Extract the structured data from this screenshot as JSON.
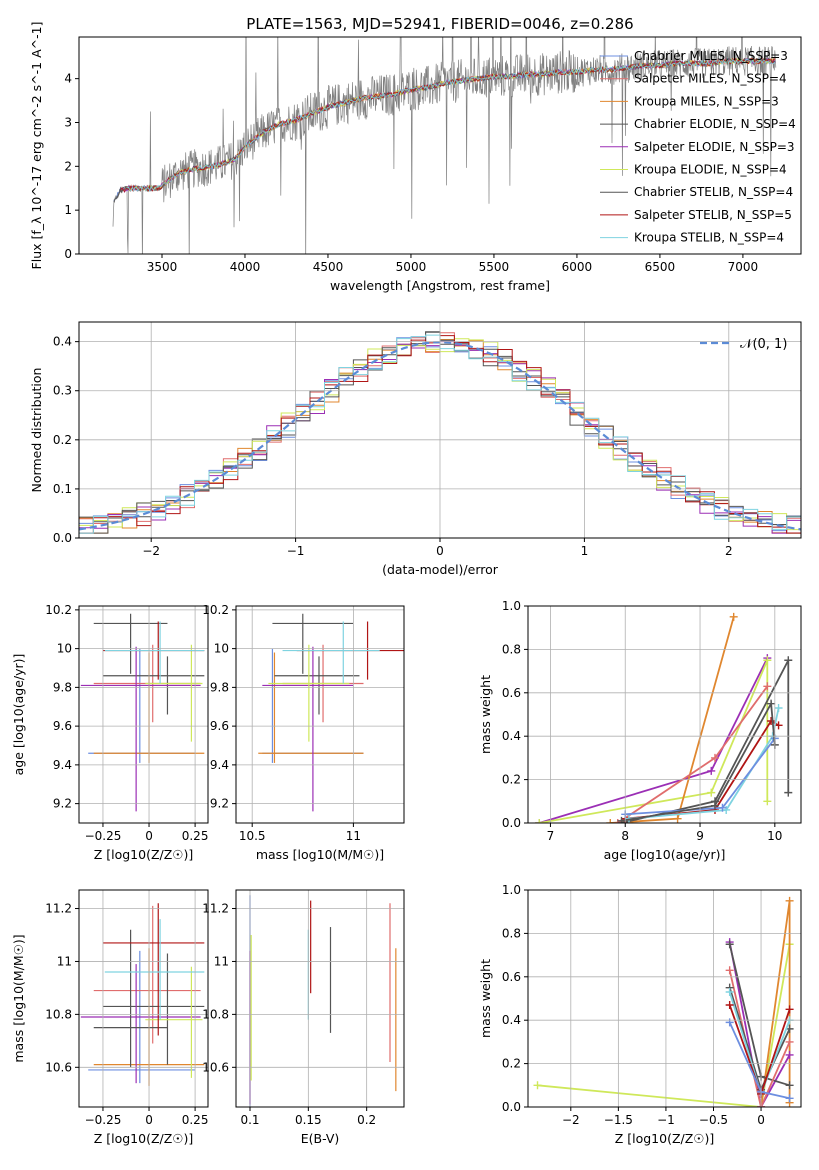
{
  "figure_title": "PLATE=1563, MJD=52941, FIBERID=0046, z=0.286",
  "colors": {
    "miles_chabrier": "#6d8fe0",
    "miles_salpeter": "#e06d6d",
    "miles_kroupa": "#e0872f",
    "elodie_chabrier": "#555555",
    "elodie_salpeter": "#9b2fb5",
    "elodie_kroupa": "#cfe85a",
    "stelib_chabrier": "#555555",
    "stelib_salpeter": "#b01515",
    "stelib_kroupa": "#7fd3e0",
    "data": "#808080",
    "normal": "#5b8bd6"
  },
  "chart_data": [
    {
      "id": "spectrum",
      "type": "line",
      "xlabel": "wavelength [Angstrom, rest frame]",
      "ylabel": "Flux [f_λ 10^-17 erg cm^-2 s^-1 A^-1]",
      "xlim": [
        3000,
        7350
      ],
      "ylim": [
        0,
        4.95
      ],
      "xticks": [
        3500,
        4000,
        4500,
        5000,
        5500,
        6000,
        6500,
        7000
      ],
      "yticks": [
        0,
        1,
        2,
        3,
        4
      ],
      "legend_position": "right",
      "legend": [
        {
          "label": "Chabrier MILES, N_SSP=3",
          "color_key": "miles_chabrier"
        },
        {
          "label": "Salpeter MILES, N_SSP=4",
          "color_key": "miles_salpeter"
        },
        {
          "label": "Kroupa MILES, N_SSP=3",
          "color_key": "miles_kroupa"
        },
        {
          "label": "Chabrier ELODIE, N_SSP=4",
          "color_key": "elodie_chabrier"
        },
        {
          "label": "Salpeter ELODIE, N_SSP=3",
          "color_key": "elodie_salpeter"
        },
        {
          "label": "Kroupa ELODIE, N_SSP=4",
          "color_key": "elodie_kroupa"
        },
        {
          "label": "Chabrier STELIB, N_SSP=4",
          "color_key": "stelib_chabrier"
        },
        {
          "label": "Salpeter STELIB, N_SSP=5",
          "color_key": "stelib_salpeter"
        },
        {
          "label": "Kroupa STELIB, N_SSP=4",
          "color_key": "stelib_kroupa"
        }
      ],
      "continuum": {
        "x": [
          3200,
          3210,
          3250,
          3300,
          3400,
          3480,
          3600,
          3700,
          3800,
          3850,
          3900,
          3950,
          4000,
          4100,
          4200,
          4300,
          4400,
          4500,
          4600,
          4700,
          4800,
          4900,
          5000,
          5100,
          5200,
          5300,
          5400,
          5500,
          5600,
          5700,
          5800,
          5900,
          6000,
          6100,
          6200,
          6300,
          6400,
          6500,
          6600,
          6700,
          6800,
          6900,
          7000,
          7100,
          7200
        ],
        "y": [
          0.0,
          1.2,
          1.45,
          1.5,
          1.5,
          1.5,
          1.85,
          1.95,
          2.0,
          2.05,
          2.1,
          2.2,
          2.45,
          2.75,
          2.95,
          3.05,
          3.2,
          3.35,
          3.45,
          3.55,
          3.6,
          3.65,
          3.75,
          3.8,
          3.9,
          3.95,
          4.0,
          4.05,
          4.05,
          4.1,
          4.1,
          4.15,
          4.15,
          4.2,
          4.2,
          4.25,
          4.3,
          4.3,
          4.35,
          4.35,
          4.35,
          4.4,
          4.4,
          4.4,
          4.4
        ]
      }
    },
    {
      "id": "residuals",
      "type": "line",
      "xlabel": "(data-model)/error",
      "ylabel": "Normed distribution",
      "xlim": [
        -2.5,
        2.5
      ],
      "ylim": [
        0,
        0.44
      ],
      "xticks": [
        -2,
        -1,
        0,
        1,
        2
      ],
      "yticks": [
        0.0,
        0.1,
        0.2,
        0.3,
        0.4
      ],
      "grid": true,
      "legend_position": "top-right",
      "legend": [
        {
          "label": "𝒩(0, 1)",
          "color_key": "normal"
        }
      ],
      "bins": {
        "start": -2.5,
        "width": 0.1,
        "count": 50
      }
    },
    {
      "id": "age_vs_Z",
      "type": "scatter",
      "xlabel": "Z [log10(Z/Z☉)]",
      "ylabel": "age  [log10(age/yr)]",
      "xlim": [
        -0.38,
        0.32
      ],
      "ylim": [
        9.1,
        10.22
      ],
      "xticks": [
        -0.25,
        0.0,
        0.25
      ],
      "yticks": [
        9.2,
        9.4,
        9.6,
        9.8,
        10.0,
        10.2
      ],
      "grid": true,
      "points": [
        {
          "c": "miles_chabrier",
          "x": -0.05,
          "xerr": [
            0.28,
            0.3
          ],
          "y": 9.46,
          "yerr": [
            0.05,
            0.54
          ]
        },
        {
          "c": "miles_salpeter",
          "x": 0.02,
          "xerr": [
            0.32,
            0.26
          ],
          "y": 9.82,
          "yerr": [
            0.2,
            0.2
          ]
        },
        {
          "c": "miles_kroupa",
          "x": 0.0,
          "xerr": [
            0.3,
            0.3
          ],
          "y": 9.46,
          "yerr": [
            0.05,
            0.52
          ]
        },
        {
          "c": "elodie_chabrier",
          "x": 0.1,
          "xerr": [
            0.35,
            0.2
          ],
          "y": 9.86,
          "yerr": [
            0.2,
            0.1
          ]
        },
        {
          "c": "elodie_salpeter",
          "x": -0.07,
          "xerr": [
            0.3,
            0.35
          ],
          "y": 9.81,
          "yerr": [
            0.65,
            0.2
          ]
        },
        {
          "c": "elodie_kroupa",
          "x": 0.23,
          "xerr": [
            0.25,
            0.06
          ],
          "y": 9.82,
          "yerr": [
            0.3,
            0.2
          ]
        },
        {
          "c": "stelib_chabrier",
          "x": -0.1,
          "xerr": [
            0.2,
            0.2
          ],
          "y": 10.13,
          "yerr": [
            0.26,
            0.05
          ]
        },
        {
          "c": "stelib_salpeter",
          "x": 0.05,
          "xerr": [
            0.3,
            0.25
          ],
          "y": 9.99,
          "yerr": [
            0.15,
            0.15
          ]
        },
        {
          "c": "stelib_kroupa",
          "x": 0.06,
          "xerr": [
            0.3,
            0.24
          ],
          "y": 9.99,
          "yerr": [
            0.17,
            0.15
          ]
        }
      ]
    },
    {
      "id": "age_vs_mass",
      "type": "scatter",
      "xlabel": "mass [log10(M/M☉)]",
      "ylabel": "",
      "xlim": [
        10.42,
        11.25
      ],
      "ylim": [
        9.1,
        10.22
      ],
      "xticks": [
        10.5,
        11.0
      ],
      "yticks": [
        9.2,
        9.4,
        9.6,
        9.8,
        10.0,
        10.2
      ],
      "grid": true,
      "points": [
        {
          "c": "miles_chabrier",
          "x": 10.6,
          "xerr": [
            0.05,
            0.45
          ],
          "y": 9.46,
          "yerr": [
            0.05,
            0.54
          ]
        },
        {
          "c": "miles_salpeter",
          "x": 10.85,
          "xerr": [
            0.2,
            0.2
          ],
          "y": 9.82,
          "yerr": [
            0.2,
            0.2
          ]
        },
        {
          "c": "miles_kroupa",
          "x": 10.61,
          "xerr": [
            0.08,
            0.44
          ],
          "y": 9.46,
          "yerr": [
            0.05,
            0.52
          ]
        },
        {
          "c": "elodie_chabrier",
          "x": 10.83,
          "xerr": [
            0.22,
            0.2
          ],
          "y": 9.86,
          "yerr": [
            0.2,
            0.1
          ]
        },
        {
          "c": "elodie_salpeter",
          "x": 10.8,
          "xerr": [
            0.25,
            0.2
          ],
          "y": 9.81,
          "yerr": [
            0.65,
            0.2
          ]
        },
        {
          "c": "elodie_kroupa",
          "x": 10.78,
          "xerr": [
            0.2,
            0.2
          ],
          "y": 9.82,
          "yerr": [
            0.3,
            0.2
          ]
        },
        {
          "c": "stelib_chabrier",
          "x": 10.75,
          "xerr": [
            0.15,
            0.25
          ],
          "y": 10.13,
          "yerr": [
            0.26,
            0.05
          ]
        },
        {
          "c": "stelib_salpeter",
          "x": 11.07,
          "xerr": [
            0.35,
            0.2
          ],
          "y": 9.99,
          "yerr": [
            0.15,
            0.15
          ]
        },
        {
          "c": "stelib_kroupa",
          "x": 10.95,
          "xerr": [
            0.3,
            0.18
          ],
          "y": 9.99,
          "yerr": [
            0.17,
            0.15
          ]
        }
      ]
    },
    {
      "id": "mw_vs_age",
      "type": "line",
      "xlabel": "age  [log10(age/yr)]",
      "ylabel": "mass weight",
      "xlim": [
        6.7,
        10.35
      ],
      "ylim": [
        0,
        1.0
      ],
      "xticks": [
        7,
        8,
        9,
        10
      ],
      "yticks": [
        0.0,
        0.2,
        0.4,
        0.6,
        0.8,
        1.0
      ],
      "grid": true,
      "series": [
        {
          "c": "elodie_salpeter",
          "x": [
            6.85,
            9.15,
            9.9
          ],
          "y": [
            0.0,
            0.24,
            0.76
          ]
        },
        {
          "c": "elodie_kroupa",
          "x": [
            6.85,
            9.15,
            9.9,
            9.9
          ],
          "y": [
            0.0,
            0.14,
            0.75,
            0.1
          ]
        },
        {
          "c": "miles_kroupa",
          "x": [
            7.8,
            8.7,
            9.45
          ],
          "y": [
            0.0,
            0.02,
            0.95
          ]
        },
        {
          "c": "miles_salpeter",
          "x": [
            7.9,
            9.2,
            9.9
          ],
          "y": [
            0.0,
            0.3,
            0.63
          ]
        },
        {
          "c": "elodie_chabrier",
          "x": [
            7.95,
            9.2,
            10.18,
            10.18
          ],
          "y": [
            0.0,
            0.1,
            0.75,
            0.14
          ]
        },
        {
          "c": "stelib_salpeter",
          "x": [
            8.0,
            9.2,
            9.95,
            10.05
          ],
          "y": [
            0.02,
            0.06,
            0.47,
            0.45
          ]
        },
        {
          "c": "stelib_kroupa",
          "x": [
            8.05,
            9.35,
            9.97,
            10.05
          ],
          "y": [
            0.02,
            0.06,
            0.4,
            0.53
          ]
        },
        {
          "c": "miles_chabrier",
          "x": [
            8.0,
            9.3,
            10.0
          ],
          "y": [
            0.04,
            0.07,
            0.39
          ]
        },
        {
          "c": "stelib_chabrier",
          "x": [
            7.95,
            9.2,
            9.95,
            10.0
          ],
          "y": [
            0.01,
            0.08,
            0.55,
            0.36
          ]
        }
      ]
    },
    {
      "id": "mass_vs_Z",
      "type": "scatter",
      "xlabel": "Z [log10(Z/Z☉)]",
      "ylabel": "mass [log10(M/M☉)]",
      "xlim": [
        -0.38,
        0.32
      ],
      "ylim": [
        10.45,
        11.27
      ],
      "xticks": [
        -0.25,
        0.0,
        0.25
      ],
      "yticks": [
        10.6,
        10.8,
        11.0,
        11.2
      ],
      "grid": true,
      "points": [
        {
          "c": "miles_chabrier",
          "x": -0.05,
          "xerr": [
            0.28,
            0.3
          ],
          "y": 10.59,
          "yerr": [
            0.05,
            0.45
          ]
        },
        {
          "c": "miles_salpeter",
          "x": 0.02,
          "xerr": [
            0.32,
            0.26
          ],
          "y": 10.89,
          "yerr": [
            0.2,
            0.32
          ]
        },
        {
          "c": "miles_kroupa",
          "x": 0.0,
          "xerr": [
            0.3,
            0.3
          ],
          "y": 10.61,
          "yerr": [
            0.08,
            0.44
          ]
        },
        {
          "c": "elodie_chabrier",
          "x": 0.1,
          "xerr": [
            0.35,
            0.2
          ],
          "y": 10.83,
          "yerr": [
            0.22,
            0.2
          ]
        },
        {
          "c": "elodie_salpeter",
          "x": -0.07,
          "xerr": [
            0.3,
            0.35
          ],
          "y": 10.79,
          "yerr": [
            0.25,
            0.2
          ]
        },
        {
          "c": "elodie_kroupa",
          "x": 0.23,
          "xerr": [
            0.25,
            0.06
          ],
          "y": 10.78,
          "yerr": [
            0.22,
            0.2
          ]
        },
        {
          "c": "stelib_chabrier",
          "x": -0.1,
          "xerr": [
            0.2,
            0.2
          ],
          "y": 10.75,
          "yerr": [
            0.15,
            0.37
          ]
        },
        {
          "c": "stelib_salpeter",
          "x": 0.05,
          "xerr": [
            0.3,
            0.25
          ],
          "y": 11.07,
          "yerr": [
            0.35,
            0.15
          ]
        },
        {
          "c": "stelib_kroupa",
          "x": 0.06,
          "xerr": [
            0.3,
            0.24
          ],
          "y": 10.96,
          "yerr": [
            0.18,
            0.2
          ]
        }
      ]
    },
    {
      "id": "mass_vs_EBV",
      "type": "scatter",
      "xlabel": "E(B-V)",
      "ylabel": "",
      "xlim": [
        0.088,
        0.232
      ],
      "ylim": [
        10.45,
        11.27
      ],
      "xticks": [
        0.1,
        0.15,
        0.2
      ],
      "yticks": [
        10.6,
        10.8,
        11.0,
        11.2
      ],
      "grid": true,
      "points": [
        {
          "c": "miles_chabrier",
          "x": 0.1,
          "yerr": [
            0.5,
            0.5
          ],
          "y": 10.75
        },
        {
          "c": "elodie_salpeter",
          "x": 0.1,
          "y": 10.74,
          "yerr": [
            0.28,
            0.3
          ]
        },
        {
          "c": "elodie_kroupa",
          "x": 0.101,
          "y": 10.8,
          "yerr": [
            0.25,
            0.3
          ]
        },
        {
          "c": "stelib_kroupa",
          "x": 0.15,
          "y": 10.95,
          "yerr": [
            0.17,
            0.17
          ]
        },
        {
          "c": "stelib_salpeter",
          "x": 0.152,
          "y": 11.08,
          "yerr": [
            0.2,
            0.15
          ]
        },
        {
          "c": "elodie_chabrier",
          "x": 0.169,
          "y": 10.93,
          "yerr": [
            0.2,
            0.2
          ]
        },
        {
          "c": "miles_salpeter",
          "x": 0.22,
          "y": 10.92,
          "yerr": [
            0.3,
            0.3
          ]
        },
        {
          "c": "miles_kroupa",
          "x": 0.225,
          "y": 10.78,
          "yerr": [
            0.27,
            0.27
          ]
        }
      ]
    },
    {
      "id": "mw_vs_Z",
      "type": "line",
      "xlabel": "Z [log10(Z/Z☉)]",
      "ylabel": "mass weight",
      "xlim": [
        -2.45,
        0.42
      ],
      "ylim": [
        0,
        1.0
      ],
      "xticks": [
        -2.0,
        -1.5,
        -1.0,
        -0.5,
        0.0
      ],
      "yticks": [
        0.0,
        0.2,
        0.4,
        0.6,
        0.8,
        1.0
      ],
      "grid": true,
      "series": [
        {
          "c": "elodie_kroupa",
          "x": [
            -2.35,
            0.0,
            0.3
          ],
          "y": [
            0.1,
            0.0,
            0.75
          ]
        },
        {
          "c": "miles_kroupa",
          "x": [
            0.0,
            0.3,
            0.3
          ],
          "y": [
            0.0,
            0.95,
            0.02
          ]
        },
        {
          "c": "elodie_salpeter",
          "x": [
            -0.33,
            0.0,
            0.3
          ],
          "y": [
            0.76,
            0.0,
            0.24
          ]
        },
        {
          "c": "elodie_chabrier",
          "x": [
            -0.33,
            0.0,
            0.3
          ],
          "y": [
            0.75,
            0.14,
            0.1
          ]
        },
        {
          "c": "miles_salpeter",
          "x": [
            -0.33,
            0.0,
            0.3
          ],
          "y": [
            0.63,
            0.0,
            0.3
          ]
        },
        {
          "c": "stelib_chabrier",
          "x": [
            -0.33,
            0.0,
            0.3
          ],
          "y": [
            0.55,
            0.08,
            0.36
          ]
        },
        {
          "c": "stelib_kroupa",
          "x": [
            -0.33,
            0.0,
            0.3
          ],
          "y": [
            0.53,
            0.06,
            0.4
          ]
        },
        {
          "c": "stelib_salpeter",
          "x": [
            -0.33,
            0.0,
            0.3
          ],
          "y": [
            0.47,
            0.06,
            0.45
          ]
        },
        {
          "c": "miles_chabrier",
          "x": [
            -0.33,
            0.0,
            0.3
          ],
          "y": [
            0.39,
            0.07,
            0.04
          ]
        }
      ]
    }
  ]
}
